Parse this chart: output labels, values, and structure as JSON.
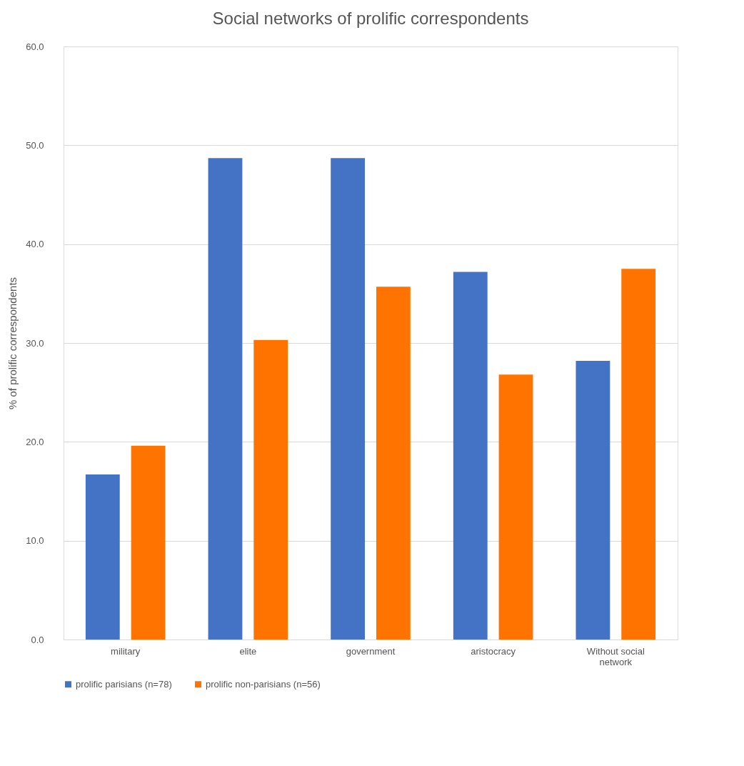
{
  "chart_data": {
    "type": "bar",
    "title": "Social networks of prolific correspondents",
    "ylabel": "% of prolific correspondents",
    "categories": [
      "military",
      "elite",
      "government",
      "aristocracy",
      "Without social network"
    ],
    "series": [
      {
        "name": "prolific parisians (n=78)",
        "color": "#4472c4",
        "values": [
          16.7,
          48.7,
          48.7,
          37.2,
          28.2
        ]
      },
      {
        "name": "prolific non-parisians (n=56)",
        "color": "#ff7300",
        "values": [
          19.6,
          30.3,
          35.7,
          26.8,
          37.5
        ]
      }
    ],
    "ylim": [
      0,
      60
    ],
    "yticks": [
      {
        "value": 0,
        "label": "0.0"
      },
      {
        "value": 10,
        "label": "10.0"
      },
      {
        "value": 20,
        "label": "20.0"
      },
      {
        "value": 30,
        "label": "30.0"
      },
      {
        "value": 40,
        "label": "40.0"
      },
      {
        "value": 50,
        "label": "50.0"
      },
      {
        "value": 60,
        "label": "60.0"
      }
    ],
    "grid": "y",
    "legend": "bottom"
  }
}
